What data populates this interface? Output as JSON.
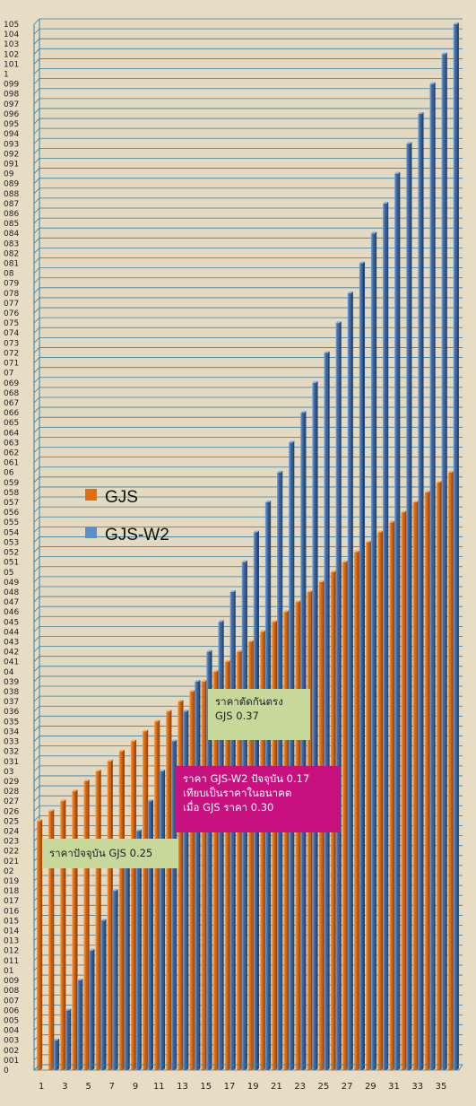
{
  "chart_data": {
    "type": "bar",
    "categories": [
      1,
      2,
      3,
      4,
      5,
      6,
      7,
      8,
      9,
      10,
      11,
      12,
      13,
      14,
      15,
      16,
      17,
      18,
      19,
      20,
      21,
      22,
      23,
      24,
      25,
      26,
      27,
      28,
      29,
      30,
      31,
      32,
      33,
      34,
      35,
      36
    ],
    "x_tick_labels": [
      "1",
      "3",
      "5",
      "7",
      "9",
      "11",
      "13",
      "15",
      "17",
      "19",
      "21",
      "23",
      "25",
      "27",
      "29",
      "31",
      "33",
      "35"
    ],
    "ylim": [
      0,
      1.05
    ],
    "y_step": 0.01,
    "grid": true,
    "legend_position": "middle-left",
    "series": [
      {
        "name": "GJS",
        "color": "#e46c0a",
        "values": [
          0.25,
          0.26,
          0.27,
          0.28,
          0.29,
          0.3,
          0.31,
          0.32,
          0.33,
          0.34,
          0.35,
          0.36,
          0.37,
          0.38,
          0.39,
          0.4,
          0.41,
          0.42,
          0.43,
          0.44,
          0.45,
          0.46,
          0.47,
          0.48,
          0.49,
          0.5,
          0.51,
          0.52,
          0.53,
          0.54,
          0.55,
          0.56,
          0.57,
          0.58,
          0.59,
          0.6
        ]
      },
      {
        "name": "GJS-W2",
        "color": "#4a7ebb",
        "values": [
          0.0,
          0.03,
          0.06,
          0.09,
          0.12,
          0.15,
          0.18,
          0.21,
          0.24,
          0.27,
          0.3,
          0.33,
          0.36,
          0.39,
          0.42,
          0.45,
          0.48,
          0.51,
          0.54,
          0.57,
          0.6,
          0.63,
          0.66,
          0.69,
          0.72,
          0.75,
          0.78,
          0.81,
          0.84,
          0.87,
          0.9,
          0.93,
          0.96,
          0.99,
          1.02,
          1.05
        ]
      }
    ]
  },
  "annotations": {
    "current_price": "ราคาปัจจุบัน GJS 0.25",
    "future_l1": "ราคา GJS-W2 ปัจจุบัน 0.17",
    "future_l2": "เทียบเป็นราคาในอนาคต",
    "future_l3": "เมื่อ GJS  ราคา 0.30",
    "cross_l1": "ราคาตัดกันตรง",
    "cross_l2": "GJS 0.37"
  }
}
